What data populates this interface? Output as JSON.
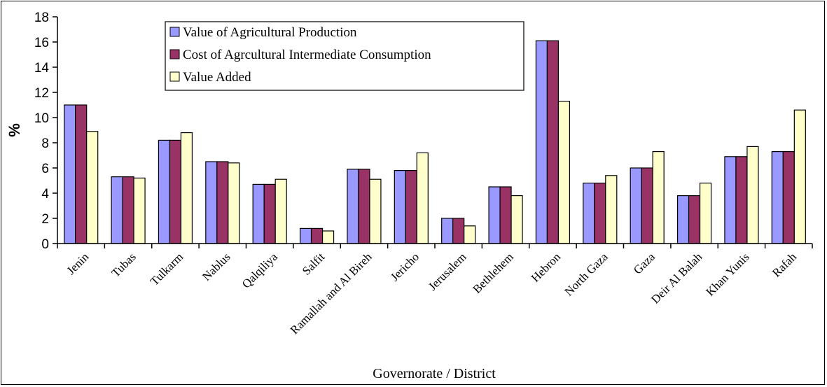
{
  "chart_data": {
    "type": "bar",
    "xlabel": "Governorate / District",
    "ylabel": "%",
    "ylim": [
      0,
      18
    ],
    "yticks": [
      0,
      2,
      4,
      6,
      8,
      10,
      12,
      14,
      16,
      18
    ],
    "grid": false,
    "legend_position": "top-center",
    "categories": [
      "Jenin",
      "Tubas",
      "Tulkarm",
      "Nablus",
      "Qalqiliya",
      "Salfit",
      "Ramallah and Al Bireh",
      "Jericho",
      "Jerusalem",
      "Bethlehem",
      "Hebron",
      "North Gaza",
      "Gaza",
      "Deir Al Balah",
      "Khan Yunis",
      "Rafah"
    ],
    "series": [
      {
        "name": "Value of Agricultural Production",
        "color": "#9999ff",
        "values": [
          11.0,
          5.3,
          8.2,
          6.5,
          4.7,
          1.2,
          5.9,
          5.8,
          2.0,
          4.5,
          16.1,
          4.8,
          6.0,
          3.8,
          6.9,
          7.3
        ]
      },
      {
        "name": "Cost of Agrcultural Intermediate Consumption",
        "color": "#993366",
        "values": [
          11.0,
          5.3,
          8.2,
          6.5,
          4.7,
          1.2,
          5.9,
          5.8,
          2.0,
          4.5,
          16.1,
          4.8,
          6.0,
          3.8,
          6.9,
          7.3
        ]
      },
      {
        "name": "Value Added",
        "color": "#ffffcc",
        "values": [
          8.9,
          5.2,
          8.8,
          6.4,
          5.1,
          1.0,
          5.1,
          7.2,
          1.4,
          3.8,
          11.3,
          5.4,
          7.3,
          4.8,
          7.7,
          10.6
        ]
      }
    ]
  }
}
